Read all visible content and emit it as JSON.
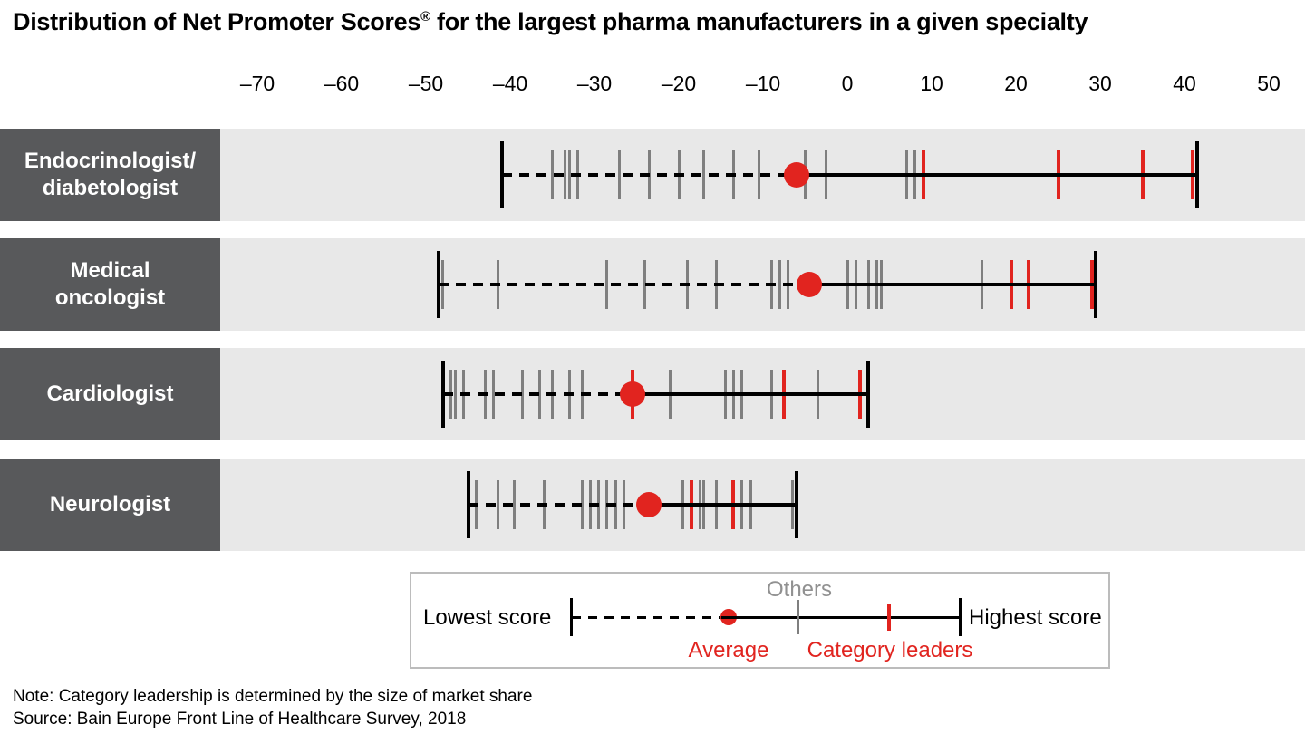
{
  "title": {
    "main": "Distribution of Net Promoter Scores",
    "registered": "®",
    "rest": " for the largest pharma manufacturers in a given specialty"
  },
  "legend": {
    "lowest": "Lowest score",
    "highest": "Highest score",
    "others": "Others",
    "average": "Average",
    "leaders": "Category leaders"
  },
  "note": "Note: Category leadership is determined by the size of market share",
  "source": "Source: Bain Europe Front Line of Healthcare Survey, 2018",
  "colors": {
    "red": "#e1241f",
    "other_tick_gray": "#7f7f7f",
    "row_label_box": "#58595b",
    "row_band": "#e8e8e8",
    "others_label_gray": "#919191",
    "line_black": "#000000",
    "legend_border": "#bcbcbc"
  },
  "chart_data": {
    "type": "scatter",
    "variant": "distribution-strip",
    "title": "Distribution of Net Promoter Scores® for the largest pharma manufacturers in a given specialty",
    "xlabel": "",
    "ylabel": "",
    "grid": false,
    "legend_position": "bottom",
    "axis": {
      "min": -70,
      "max": 50,
      "step": 10,
      "tick_values": [
        -70,
        -60,
        -50,
        -40,
        -30,
        -20,
        -10,
        0,
        10,
        20,
        30,
        40,
        50
      ],
      "tick_labels": [
        "–70",
        "–60",
        "–50",
        "–40",
        "–30",
        "–20",
        "–10",
        "0",
        "10",
        "20",
        "30",
        "40",
        "50"
      ]
    },
    "series": [
      {
        "name": "Endocrinologist/diabetologist",
        "label_lines": [
          "Endocrinologist/",
          "diabetologist"
        ],
        "lowest": -41,
        "highest": 41.5,
        "average": -6,
        "others": [
          -35,
          -33.5,
          -33,
          -32,
          -27,
          -23.5,
          -20,
          -17,
          -13.5,
          -10.5,
          -5,
          -2.5,
          7,
          8
        ],
        "category_leaders": [
          9,
          25,
          35,
          41
        ]
      },
      {
        "name": "Medical oncologist",
        "label_lines": [
          "Medical",
          "oncologist"
        ],
        "lowest": -48.5,
        "highest": 29.5,
        "average": -4.5,
        "others": [
          -48,
          -41.5,
          -28.5,
          -24,
          -19,
          -15.5,
          -9,
          -8,
          -7,
          0,
          1,
          2.5,
          3.5,
          4,
          16
        ],
        "category_leaders": [
          19.5,
          21.5,
          29
        ]
      },
      {
        "name": "Cardiologist",
        "label_lines": [
          "Cardiologist"
        ],
        "lowest": -48,
        "highest": 2.5,
        "average": -25.5,
        "others": [
          -47,
          -46.5,
          -45.5,
          -43,
          -42,
          -38.5,
          -36.5,
          -35,
          -33,
          -31.5,
          -21,
          -14.5,
          -13.5,
          -12.5,
          -9,
          -3.5
        ],
        "category_leaders": [
          -25.5,
          -7.5,
          1.5
        ]
      },
      {
        "name": "Neurologist",
        "label_lines": [
          "Neurologist"
        ],
        "lowest": -45,
        "highest": -6,
        "average": -23.5,
        "others": [
          -44,
          -41.5,
          -39.5,
          -36,
          -31.5,
          -30.5,
          -29.5,
          -28.5,
          -27.5,
          -26.5,
          -19.5,
          -17.5,
          -17,
          -15.5,
          -12.5,
          -11.5,
          -6.5
        ],
        "category_leaders": [
          -18.5,
          -13.5
        ]
      }
    ]
  }
}
